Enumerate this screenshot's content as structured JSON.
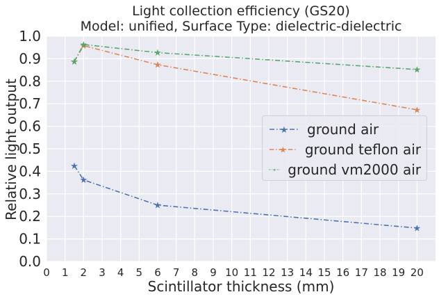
{
  "chart_data": {
    "type": "line",
    "title": "Light collection efficiency (GS20)",
    "subtitle": "Model: unified, Surface Type: dielectric-dielectric",
    "xlabel": "Scintillator thickness (mm)",
    "ylabel": "Relative light output",
    "xlim": [
      0,
      21
    ],
    "ylim": [
      0.0,
      1.0
    ],
    "xticks": [
      "0",
      "1",
      "2",
      "3",
      "4",
      "5",
      "6",
      "7",
      "8",
      "9",
      "10",
      "11",
      "12",
      "13",
      "14",
      "15",
      "16",
      "17",
      "18",
      "19",
      "20"
    ],
    "yticks": [
      "0.0",
      "0.1",
      "0.2",
      "0.3",
      "0.4",
      "0.5",
      "0.6",
      "0.7",
      "0.8",
      "0.9",
      "1.0"
    ],
    "grid": true,
    "legend_position": "center-right",
    "series": [
      {
        "name": "ground air",
        "color": "#4c72b0",
        "x": [
          1.5,
          2,
          6,
          20
        ],
        "y": [
          0.425,
          0.362,
          0.25,
          0.148
        ]
      },
      {
        "name": "ground teflon air",
        "color": "#dd8452",
        "x": [
          1.5,
          2,
          6,
          20
        ],
        "y": [
          0.888,
          0.958,
          0.873,
          0.673
        ]
      },
      {
        "name": "ground vm2000 air",
        "color": "#55a868",
        "x": [
          1.5,
          2,
          6,
          20
        ],
        "y": [
          0.888,
          0.963,
          0.927,
          0.852
        ]
      }
    ]
  }
}
